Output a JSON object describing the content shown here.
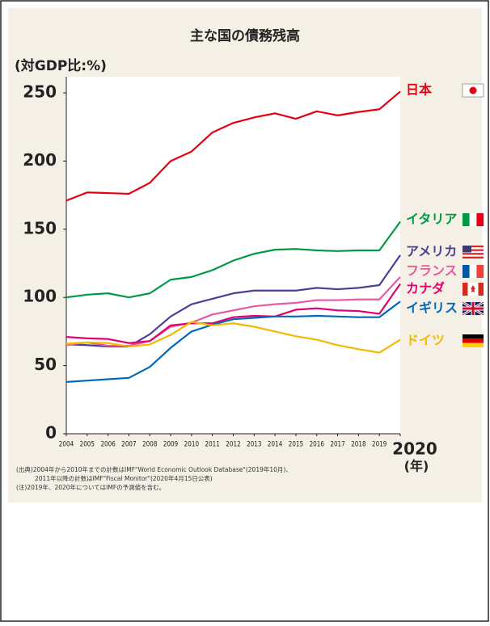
{
  "chart_data": {
    "type": "line",
    "title": "主な国の債務残高",
    "ylabel": "(対GDP比:%)",
    "xlabel": "(年)",
    "x": [
      2004,
      2005,
      2006,
      2007,
      2008,
      2009,
      2010,
      2011,
      2012,
      2013,
      2014,
      2015,
      2016,
      2017,
      2018,
      2019,
      2020
    ],
    "xticks": [
      2004,
      2005,
      2006,
      2007,
      2008,
      2009,
      2010,
      2011,
      2012,
      2013,
      2014,
      2015,
      2016,
      2017,
      2018,
      2019,
      2020
    ],
    "xlim": [
      2004,
      2020
    ],
    "ylim": [
      0,
      260
    ],
    "yticks": [
      0,
      50,
      100,
      150,
      200,
      250
    ],
    "series": [
      {
        "name": "日本",
        "color": "#e60012",
        "values": [
          171,
          177,
          176.5,
          176,
          184,
          200,
          207,
          221,
          228,
          232,
          235,
          231,
          236.5,
          233.5,
          236,
          238,
          251
        ]
      },
      {
        "name": "イタリア",
        "color": "#009944",
        "values": [
          100,
          102,
          103,
          100,
          103,
          113,
          115,
          120,
          127,
          132,
          135,
          135.5,
          134.5,
          134,
          134.5,
          134.5,
          155.5
        ]
      },
      {
        "name": "アメリカ",
        "color": "#4b3f96",
        "values": [
          65.5,
          65,
          64,
          64,
          73,
          86,
          95,
          99,
          103,
          105,
          105,
          105,
          107,
          106,
          107,
          109,
          131
        ]
      },
      {
        "name": "フランス",
        "color": "#e85aa0",
        "values": [
          65,
          67,
          64.5,
          64.5,
          68,
          78.5,
          81.5,
          87.5,
          90.5,
          93.5,
          95,
          96,
          98,
          98,
          98.5,
          98.5,
          115
        ]
      },
      {
        "name": "カナダ",
        "color": "#e4006e",
        "values": [
          71,
          70,
          69.5,
          66.5,
          68,
          79.5,
          81,
          81,
          85.5,
          86.5,
          86,
          91,
          92,
          90.5,
          90,
          88,
          110
        ]
      },
      {
        "name": "イギリス",
        "color": "#0068b7",
        "values": [
          38,
          39,
          40,
          41,
          49,
          63,
          75,
          80,
          84,
          85,
          86,
          86,
          86.5,
          86,
          85.5,
          85.5,
          97
        ]
      },
      {
        "name": "ドイツ",
        "color": "#f5b800",
        "values": [
          66,
          67,
          66.5,
          64,
          65.5,
          72.5,
          82,
          79.5,
          81,
          78.5,
          75,
          71.5,
          69,
          65,
          62,
          59.5,
          69
        ]
      }
    ],
    "notes": [
      "(出典)2004年から2010年までの計数はIMF\"World Economic Outlook Database\"(2019年10月)、",
      "2011年以降の計数はIMF\"Fiscal Monitor\"(2020年4月15日公表)",
      "(注)2019年、2020年についてはIMFの予測値を含む。"
    ]
  }
}
